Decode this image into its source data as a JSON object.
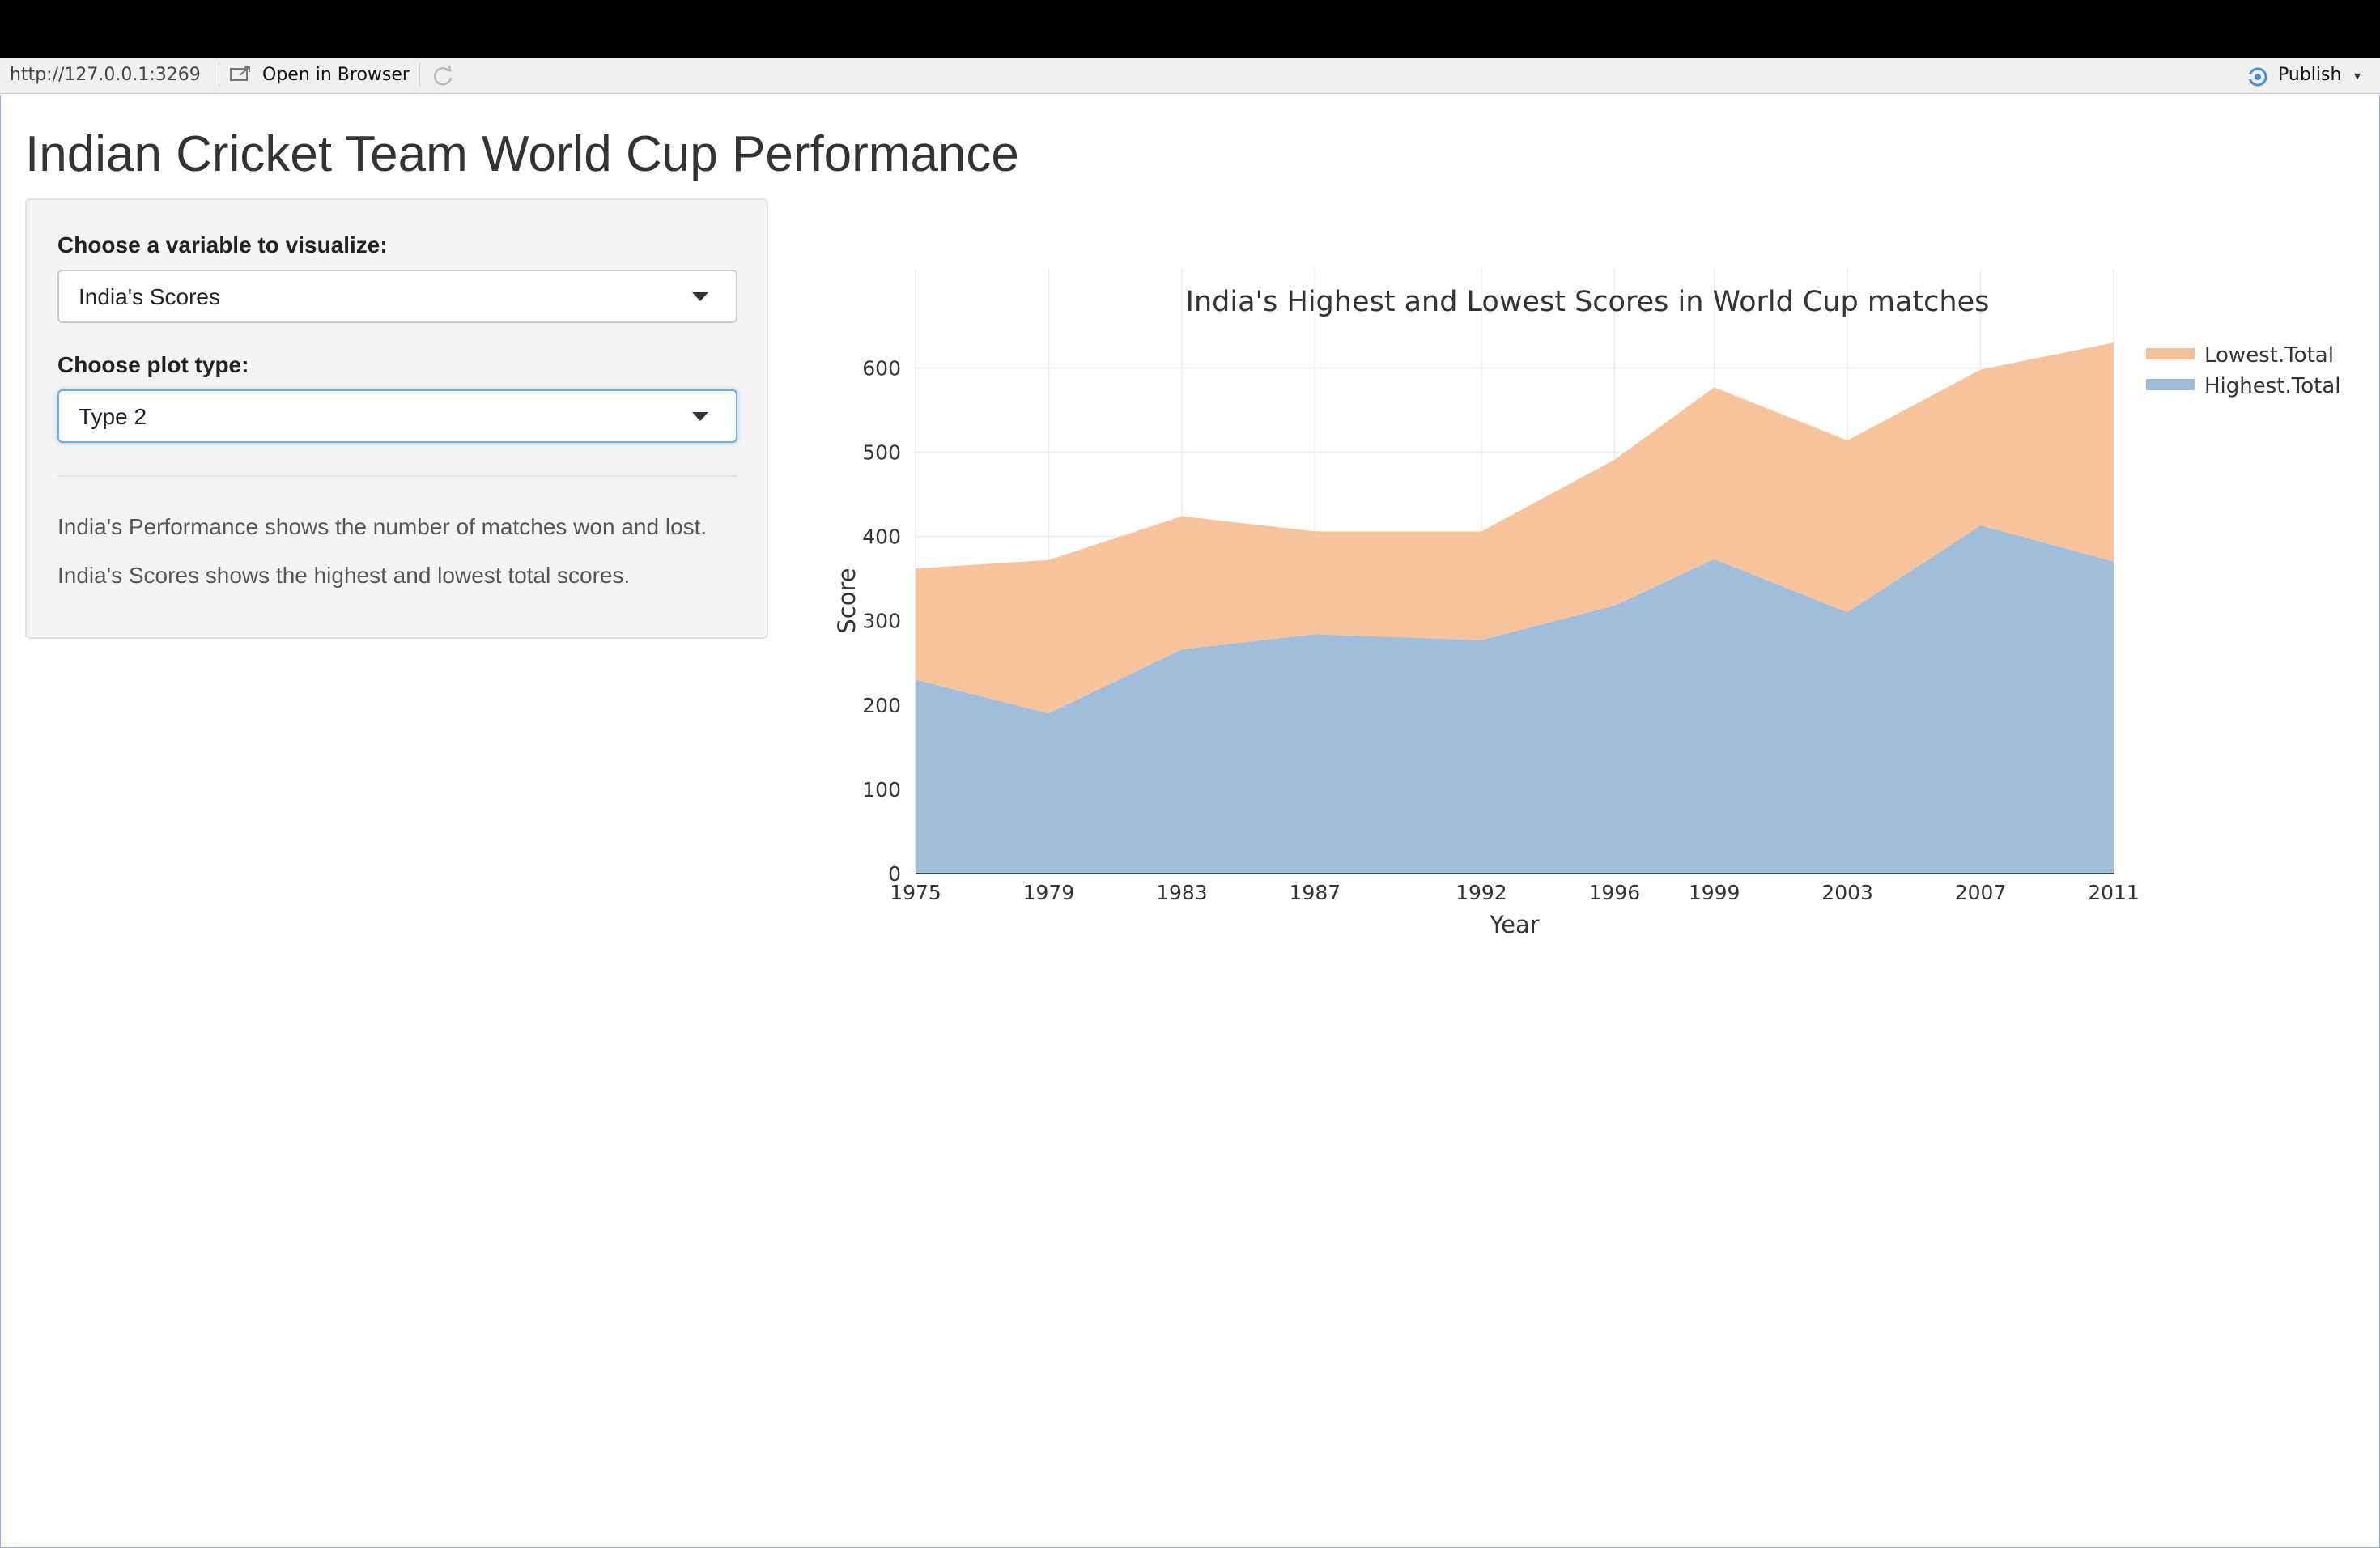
{
  "browser": {
    "url": "http://127.0.0.1:3269",
    "open_in_browser": "Open in Browser",
    "publish": "Publish"
  },
  "page": {
    "title": "Indian Cricket Team World Cup Performance"
  },
  "sidebar": {
    "variable_label": "Choose a variable to visualize:",
    "variable_value": "India's Scores",
    "plot_type_label": "Choose plot type:",
    "plot_type_value": "Type 2",
    "help_1": "India's Performance shows the number of matches won and lost.",
    "help_2": "India's Scores shows the highest and lowest total scores."
  },
  "colors": {
    "highest": "#9ebbd8",
    "lowest": "#f6c097",
    "accent_focus": "#66afe9"
  },
  "chart_data": {
    "type": "area",
    "stacked": true,
    "title": "India's Highest and Lowest Scores in World Cup matches",
    "xlabel": "Year",
    "ylabel": "Score",
    "x": [
      1975,
      1979,
      1983,
      1987,
      1992,
      1996,
      1999,
      2003,
      2007,
      2011
    ],
    "x_ticks": [
      1975,
      1979,
      1983,
      1987,
      1992,
      1996,
      1999,
      2003,
      2007,
      2011
    ],
    "y_ticks": [
      0,
      100,
      200,
      300,
      400,
      500,
      600
    ],
    "ylim": [
      0,
      660
    ],
    "grid": true,
    "legend_position": "top-right",
    "series": [
      {
        "name": "Highest.Total",
        "values": [
          230,
          190,
          266,
          284,
          277,
          318,
          373,
          310,
          413,
          370
        ],
        "color": "#9ebbd8"
      },
      {
        "name": "Lowest.Total",
        "values": [
          132,
          182,
          158,
          122,
          129,
          173,
          204,
          204,
          185,
          260
        ],
        "color": "#f6c097"
      }
    ]
  }
}
